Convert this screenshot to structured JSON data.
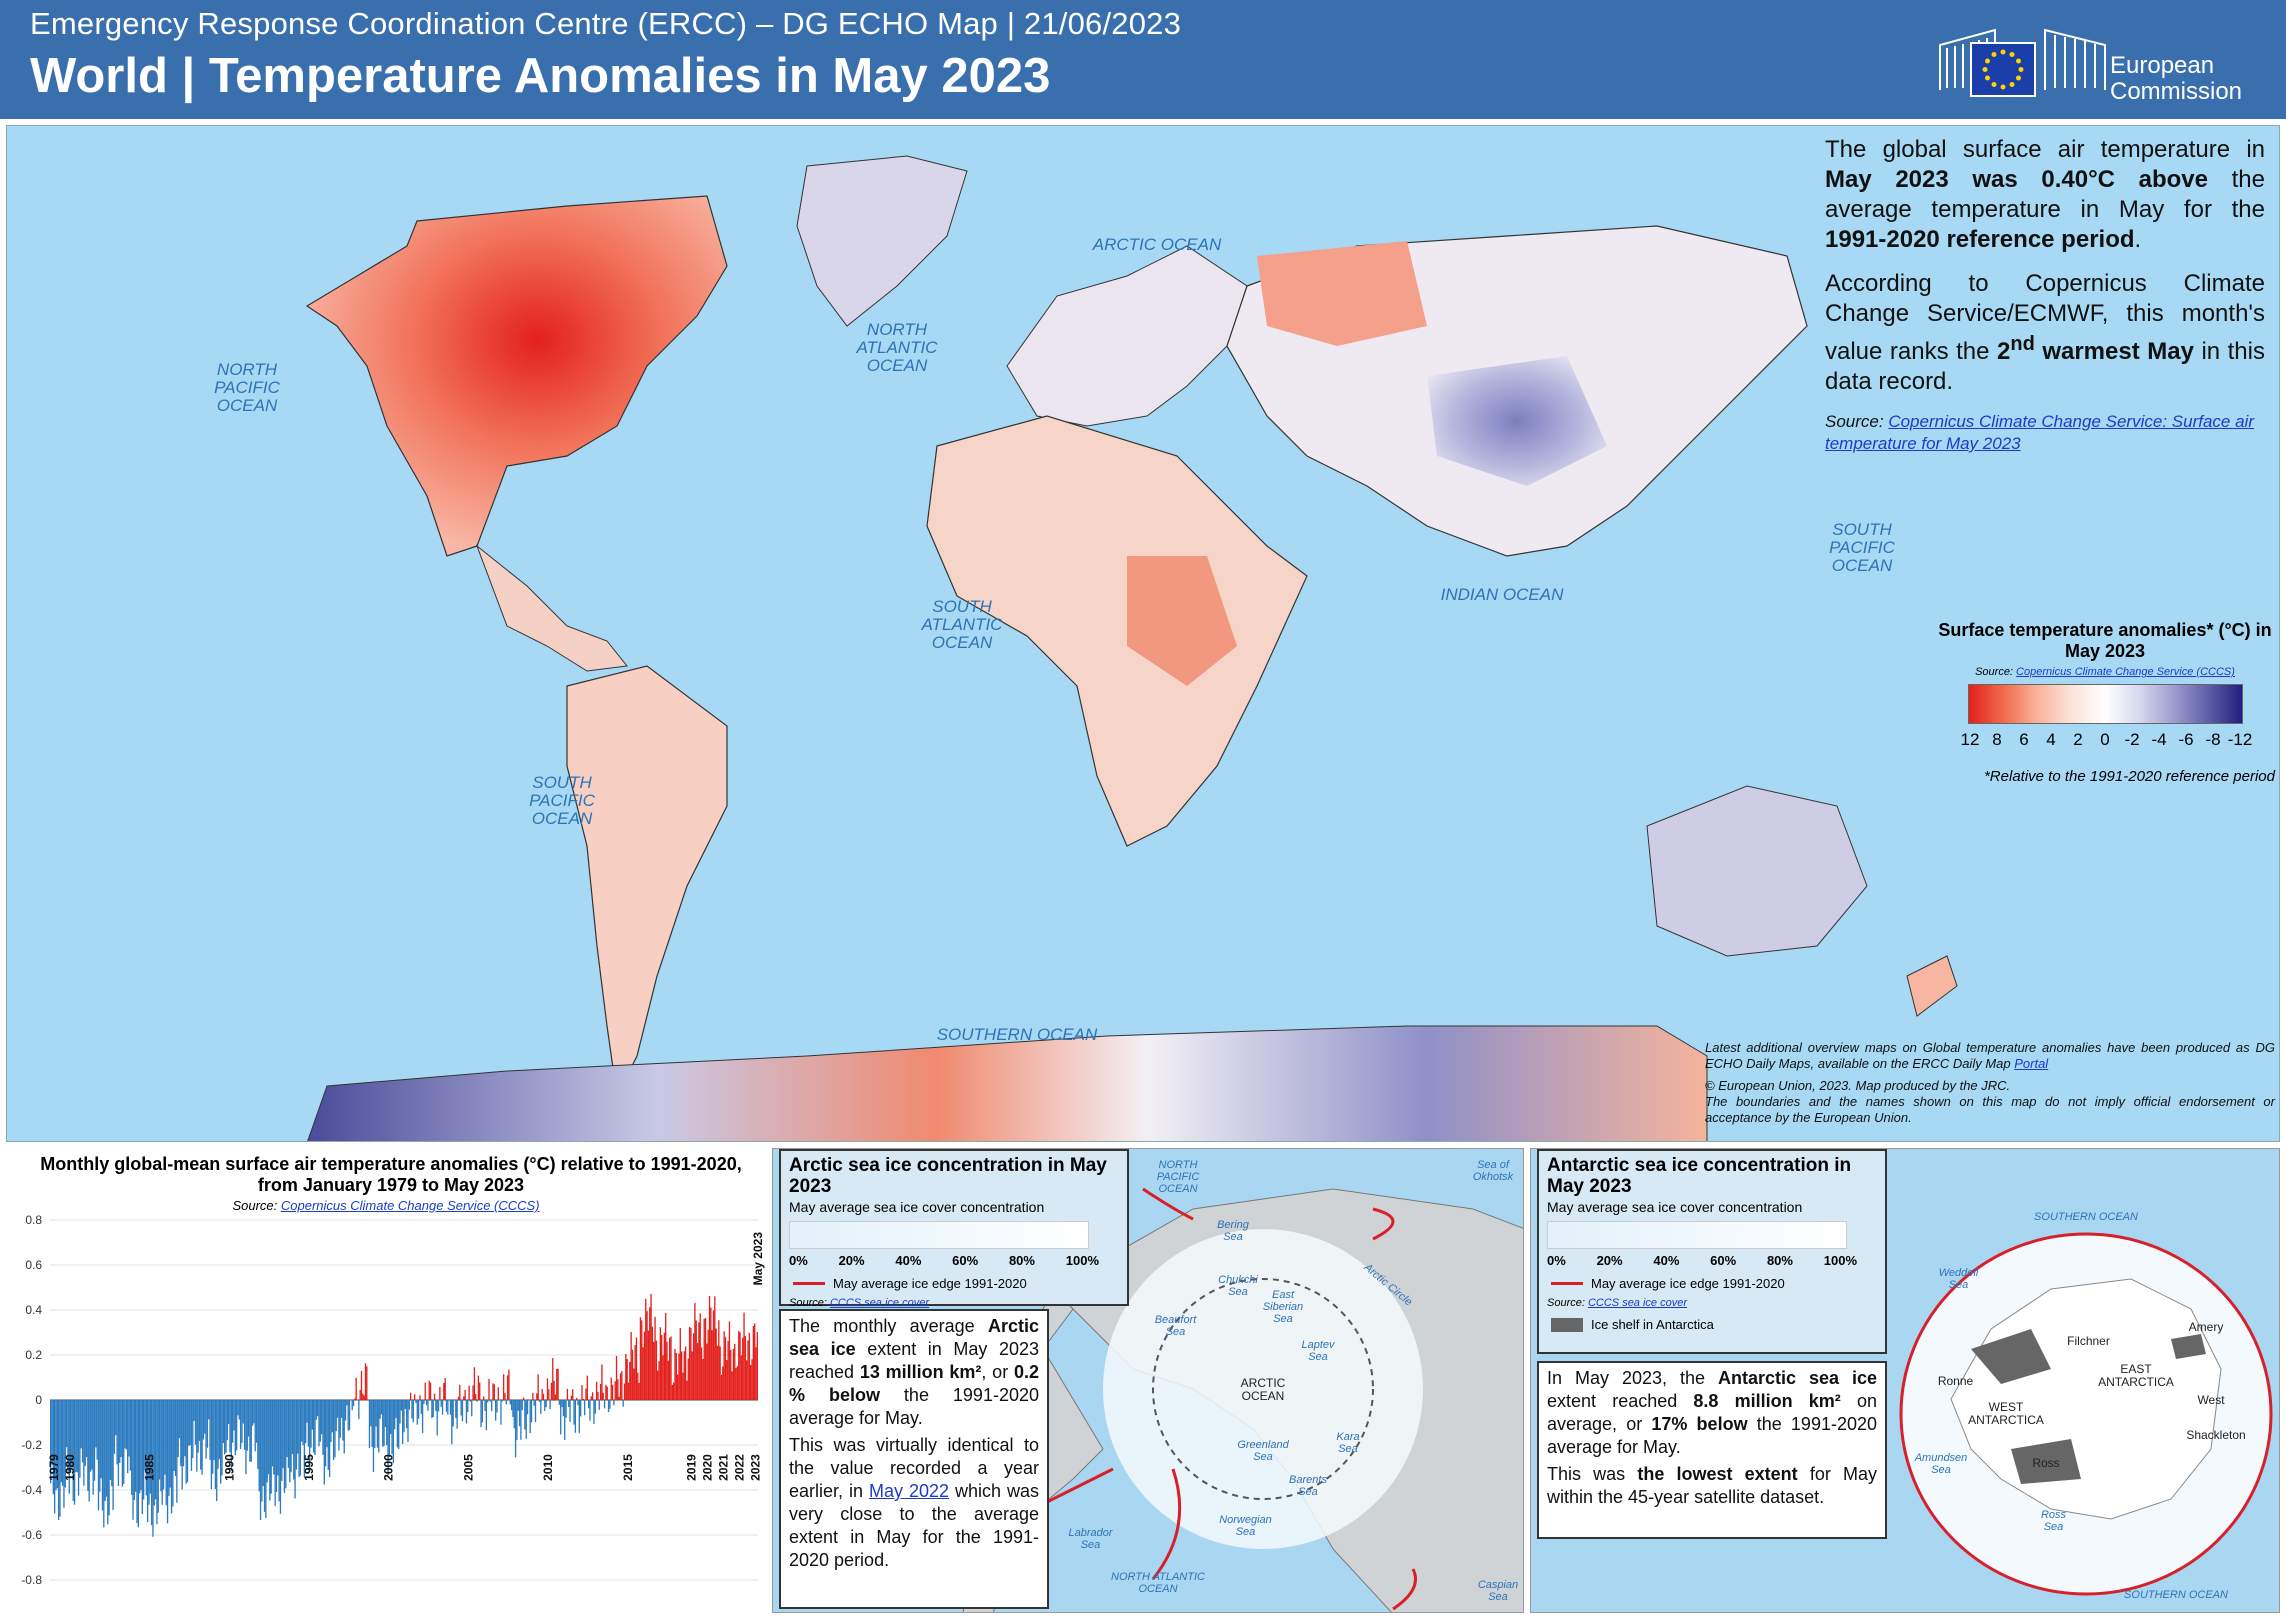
{
  "header": {
    "subtitle": "Emergency Response Coordination Centre (ERCC) – DG ECHO Map | 21/06/2023",
    "title": "World | Temperature Anomalies in May 2023",
    "logo_line1": "European",
    "logo_line2": "Commission"
  },
  "oceans": {
    "arctic": "ARCTIC OCEAN",
    "north_atlantic": "NORTH ATLANTIC OCEAN",
    "north_pacific": "NORTH PACIFIC OCEAN",
    "south_atlantic": "SOUTH ATLANTIC OCEAN",
    "south_pacific_west": "SOUTH PACIFIC OCEAN",
    "south_pacific_east": "SOUTH PACIFIC OCEAN",
    "indian": "INDIAN OCEAN",
    "southern": "SOUTHERN OCEAN"
  },
  "info": {
    "p1_a": "The global surface air temperature in ",
    "p1_b": "May 2023 was 0.40°C above",
    "p1_c": " the average temperature in May for the ",
    "p1_d": "1991-2020 reference period",
    "p1_e": ".",
    "p2_a": "According to Copernicus Climate Change Service/ECMWF, this month's value ranks the ",
    "p2_b": "2",
    "p2_sup": "nd",
    "p2_c": "warmest May",
    "p2_d": " in this data record.",
    "source_label": "Source: ",
    "source_link": "Copernicus Climate Change Service: Surface air temperature for May 2023"
  },
  "legend": {
    "title": "Surface temperature anomalies* (°C) in May 2023",
    "source_label": "Source: ",
    "source_link": "Copernicus Climate Change Service (CCCS)",
    "ticks": [
      "12",
      "8",
      "6",
      "4",
      "2",
      "0",
      "-2",
      "-4",
      "-6",
      "-8",
      "-12"
    ],
    "note": "*Relative to the 1991-2020 reference period"
  },
  "credits": {
    "line1": "Latest additional overview maps on Global temperature anomalies have been produced as DG ECHO Daily Maps, available on the ERCC Daily Map ",
    "line1_link": "Portal",
    "line2": "© European Union, 2023. Map produced by the JRC.",
    "line3": "The boundaries and the names shown on this map do not imply official endorsement or acceptance by the European Union."
  },
  "chart": {
    "title": "Monthly global-mean surface air temperature anomalies (°C) relative to 1991-2020, from January 1979 to May 2023",
    "source_label": "Source: ",
    "source_link": "Copernicus Climate Change Service (CCCS)",
    "side_label": "May 2023"
  },
  "chart_data": {
    "type": "bar",
    "title": "Monthly global-mean surface air temperature anomalies (°C) relative to 1991-2020, from January 1979 to May 2023",
    "xlabel": "",
    "ylabel": "",
    "ylim": [
      -0.8,
      0.8
    ],
    "yticks": [
      "0.8",
      "0.6",
      "0.4",
      "0.2",
      "0",
      "-0.2",
      "-0.4",
      "-0.6",
      "-0.8"
    ],
    "year_labels": [
      "1979",
      "1980",
      "1985",
      "1990",
      "1995",
      "2000",
      "2005",
      "2010",
      "2015",
      "2019",
      "2020",
      "2021",
      "2022",
      "2023"
    ],
    "colors": {
      "positive": "#e3201c",
      "negative": "#2c7bbf"
    },
    "annual_means": [
      {
        "year": 1979,
        "value": -0.42
      },
      {
        "year": 1980,
        "value": -0.35
      },
      {
        "year": 1981,
        "value": -0.33
      },
      {
        "year": 1982,
        "value": -0.45
      },
      {
        "year": 1983,
        "value": -0.28
      },
      {
        "year": 1984,
        "value": -0.45
      },
      {
        "year": 1985,
        "value": -0.48
      },
      {
        "year": 1986,
        "value": -0.42
      },
      {
        "year": 1987,
        "value": -0.28
      },
      {
        "year": 1988,
        "value": -0.22
      },
      {
        "year": 1989,
        "value": -0.32
      },
      {
        "year": 1990,
        "value": -0.18
      },
      {
        "year": 1991,
        "value": -0.2
      },
      {
        "year": 1992,
        "value": -0.42
      },
      {
        "year": 1993,
        "value": -0.38
      },
      {
        "year": 1994,
        "value": -0.3
      },
      {
        "year": 1995,
        "value": -0.18
      },
      {
        "year": 1996,
        "value": -0.25
      },
      {
        "year": 1997,
        "value": -0.12
      },
      {
        "year": 1998,
        "value": 0.05
      },
      {
        "year": 1999,
        "value": -0.18
      },
      {
        "year": 2000,
        "value": -0.2
      },
      {
        "year": 2001,
        "value": -0.08
      },
      {
        "year": 2002,
        "value": -0.02
      },
      {
        "year": 2003,
        "value": -0.02
      },
      {
        "year": 2004,
        "value": -0.06
      },
      {
        "year": 2005,
        "value": 0.02
      },
      {
        "year": 2006,
        "value": -0.02
      },
      {
        "year": 2007,
        "value": 0.02
      },
      {
        "year": 2008,
        "value": -0.12
      },
      {
        "year": 2009,
        "value": -0.02
      },
      {
        "year": 2010,
        "value": 0.06
      },
      {
        "year": 2011,
        "value": -0.06
      },
      {
        "year": 2012,
        "value": -0.02
      },
      {
        "year": 2013,
        "value": 0.02
      },
      {
        "year": 2014,
        "value": 0.06
      },
      {
        "year": 2015,
        "value": 0.18
      },
      {
        "year": 2016,
        "value": 0.35
      },
      {
        "year": 2017,
        "value": 0.25
      },
      {
        "year": 2018,
        "value": 0.18
      },
      {
        "year": 2019,
        "value": 0.3
      },
      {
        "year": 2020,
        "value": 0.35
      },
      {
        "year": 2021,
        "value": 0.22
      },
      {
        "year": 2022,
        "value": 0.25
      },
      {
        "year": 2023,
        "value": 0.3
      }
    ]
  },
  "arctic": {
    "title": "Arctic sea ice concentration in May 2023",
    "sub": "May average sea ice cover concentration",
    "ticks": [
      "0%",
      "20%",
      "40%",
      "60%",
      "80%",
      "100%"
    ],
    "edge": "May average ice edge 1991-2020",
    "source_label": "Source: ",
    "source_link": "CCCS sea ice cover",
    "t1_a": "The monthly average ",
    "t1_b": "Arctic sea ice",
    "t1_c": " extent in May 2023 reached ",
    "t1_d": "13 million km²",
    "t1_e": ", or ",
    "t1_f": "0.2 % below",
    "t1_g": " the 1991-2020 average for May.",
    "t2_a": "This was virtually identical to the value recorded a year earlier, in ",
    "t2_link": "May 2022",
    "t2_b": " which was very close to the average extent in May for the 1991-2020 period.",
    "labels": {
      "north_pacific": "NORTH PACIFIC OCEAN",
      "okhotsk": "Sea of Okhotsk",
      "bering": "Bering Sea",
      "chukchi": "Chukchi Sea",
      "east_siberian": "East Siberian Sea",
      "beaufort": "Beaufort Sea",
      "laptev": "Laptev Sea",
      "arctic_ocean": "ARCTIC OCEAN",
      "arctic_circle": "Arctic Circle",
      "kara": "Kara Sea",
      "greenland": "Greenland Sea",
      "barents": "Barents Sea",
      "labrador": "Labrador Sea",
      "norwegian": "Norwegian Sea",
      "north_atlantic": "NORTH ATLANTIC OCEAN",
      "caspian": "Caspian Sea"
    }
  },
  "antarctic": {
    "title": "Antarctic sea ice concentration in May 2023",
    "sub": "May average sea ice cover concentration",
    "ticks": [
      "0%",
      "20%",
      "40%",
      "60%",
      "80%",
      "100%"
    ],
    "edge": "May average ice edge 1991-2020",
    "source_label": "Source: ",
    "source_link": "CCCS sea ice cover",
    "shelf": "Ice shelf in Antarctica",
    "t1_a": "In May 2023, the ",
    "t1_b": "Antarctic sea ice",
    "t1_c": " extent reached ",
    "t1_d": "8.8 million km²",
    "t1_e": " on average, or ",
    "t1_f": "17% below",
    "t1_g": " the 1991-2020 average for May.",
    "t2_a": "This was ",
    "t2_b": "the lowest extent",
    "t2_c": " for May within the 45-year satellite dataset.",
    "labels": {
      "southern_top": "SOUTHERN OCEAN",
      "southern_bottom": "SOUTHERN OCEAN",
      "weddell": "Weddell Sea",
      "amery": "Amery",
      "filchner": "Filchner",
      "east_antarctica": "EAST ANTARCTICA",
      "ronne": "Ronne",
      "west": "West",
      "west_antarctica": "WEST ANTARCTICA",
      "shackleton": "Shackleton",
      "amundsen": "Amundsen Sea",
      "ross": "Ross",
      "ross_sea": "Ross Sea"
    }
  }
}
